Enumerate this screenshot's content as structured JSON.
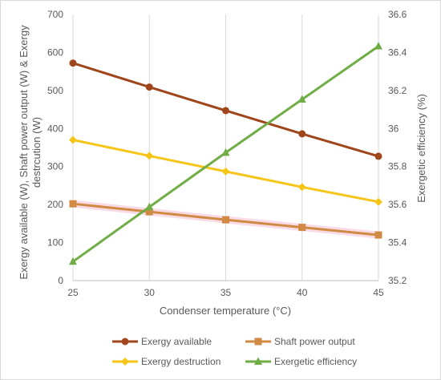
{
  "chart_data": {
    "type": "line",
    "xlabel": "Condenser temperature (°C)",
    "ylabel_left_line1": "Exergy available (W), Shaft power output  (W) &  Exergy",
    "ylabel_left_line2": "destrcution (W)",
    "ylabel_right": "Exergetic efficiency (%)",
    "x": [
      25,
      30,
      35,
      40,
      45
    ],
    "xlim": [
      25,
      45
    ],
    "ylim_left": [
      0,
      700
    ],
    "ylim_right": [
      35.2,
      36.6
    ],
    "y_ticks_left": [
      0,
      100,
      200,
      300,
      400,
      500,
      600,
      700
    ],
    "y_ticks_right": [
      "35.2",
      "35.4",
      "35.6",
      "35.8",
      "36",
      "36.2",
      "36.4",
      "36.6"
    ],
    "grid": "vertical",
    "legend_position": "bottom",
    "series": [
      {
        "name": "Exergy available",
        "axis": "left",
        "color": "#a0461c",
        "marker": "circle",
        "values": [
          572,
          509,
          447,
          386,
          327
        ]
      },
      {
        "name": "Shaft power output",
        "axis": "left",
        "color": "#d08a43",
        "marker": "square",
        "values": [
          202,
          181,
          160,
          140,
          120
        ]
      },
      {
        "name": "Exergy destruction",
        "axis": "left",
        "color": "#f5c518",
        "marker": "diamond",
        "values": [
          370,
          328,
          287,
          246,
          207
        ]
      },
      {
        "name": "Exergetic efficiency",
        "axis": "right",
        "color": "#70ad47",
        "marker": "triangle",
        "values": [
          35.3,
          35.587,
          35.873,
          36.153,
          36.433
        ]
      }
    ]
  }
}
